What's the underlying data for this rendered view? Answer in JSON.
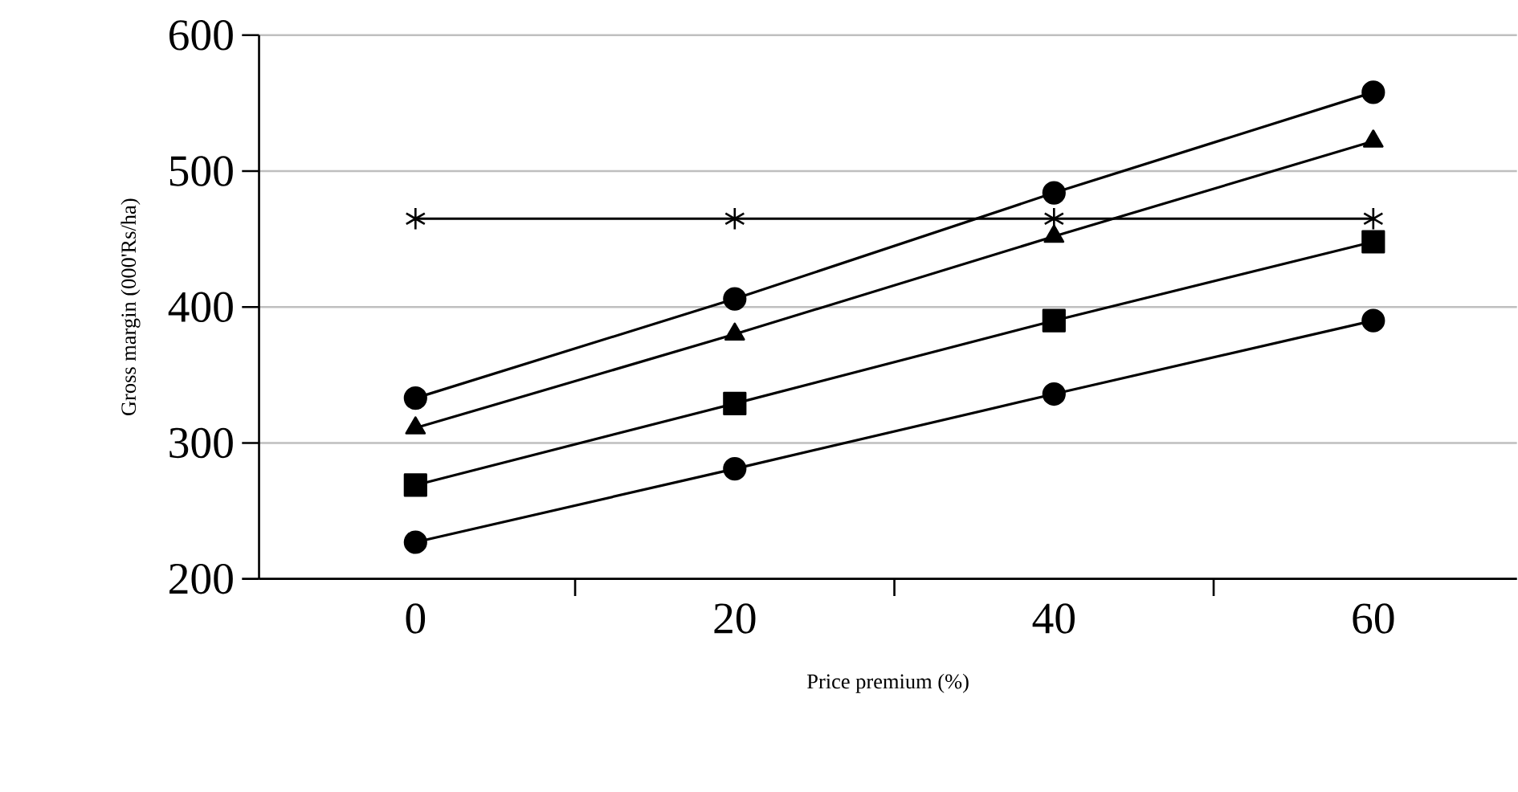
{
  "chart_data": {
    "type": "line",
    "xlabel": "Price premium (%)",
    "ylabel": "Gross margin (000'Rs/ha)",
    "categories": [
      "0",
      "20",
      "40",
      "60"
    ],
    "series": [
      {
        "color": "#000000",
        "marker": "circle",
        "values": [
          333,
          406,
          484,
          558
        ]
      },
      {
        "color": "#000000",
        "marker": "triangle",
        "values": [
          311,
          380,
          452,
          522
        ]
      },
      {
        "color": "#000000",
        "marker": "square",
        "values": [
          269,
          329,
          390,
          448
        ]
      },
      {
        "color": "#000000",
        "marker": "circle",
        "values": [
          227,
          281,
          336,
          390
        ]
      },
      {
        "color": "#000000",
        "marker": "cross",
        "values": [
          465,
          465,
          465,
          465
        ]
      }
    ],
    "ylim": [
      200,
      600
    ],
    "yticks": [
      200,
      300,
      400,
      500,
      600
    ],
    "grid": "y"
  }
}
